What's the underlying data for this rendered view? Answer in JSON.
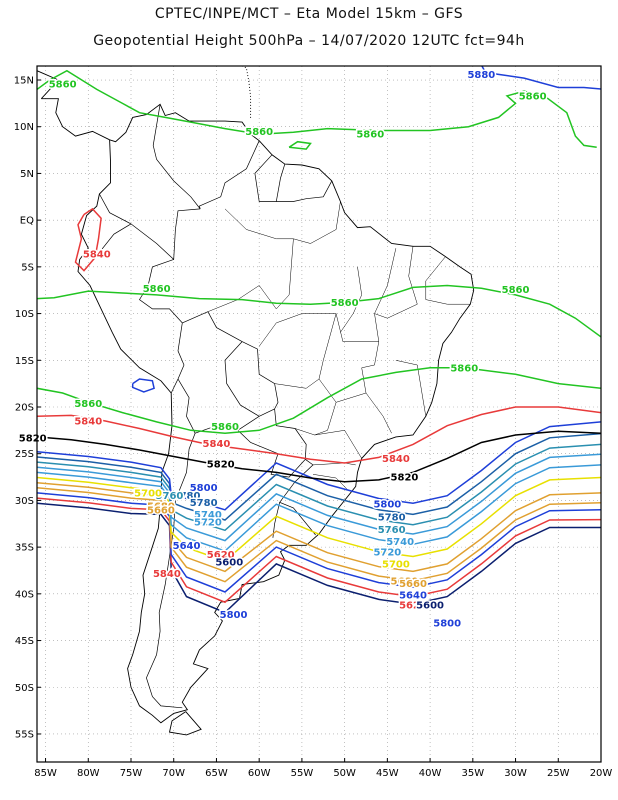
{
  "header": {
    "title_line1": "CPTEC/INPE/MCT –  Eta Model 15km – GFS",
    "title_line2": "Geopotential Height 500hPa – 14/07/2020 12UTC fct=94h"
  },
  "map": {
    "lon_range": [
      -86,
      -20
    ],
    "lat_range": [
      -58,
      16.5
    ],
    "grid": true,
    "lat_ticks": [
      {
        "lat": 15,
        "label": "15N"
      },
      {
        "lat": 10,
        "label": "10N"
      },
      {
        "lat": 5,
        "label": "5N"
      },
      {
        "lat": 0,
        "label": "EQ"
      },
      {
        "lat": -5,
        "label": "5S"
      },
      {
        "lat": -10,
        "label": "10S"
      },
      {
        "lat": -15,
        "label": "15S"
      },
      {
        "lat": -20,
        "label": "20S"
      },
      {
        "lat": -25,
        "label": "25S"
      },
      {
        "lat": -30,
        "label": "30S"
      },
      {
        "lat": -35,
        "label": "35S"
      },
      {
        "lat": -40,
        "label": "40S"
      },
      {
        "lat": -45,
        "label": "45S"
      },
      {
        "lat": -50,
        "label": "50S"
      },
      {
        "lat": -55,
        "label": "55S"
      }
    ],
    "lon_ticks": [
      {
        "lon": -85,
        "label": "85W"
      },
      {
        "lon": -80,
        "label": "80W"
      },
      {
        "lon": -75,
        "label": "75W"
      },
      {
        "lon": -70,
        "label": "70W"
      },
      {
        "lon": -65,
        "label": "65W"
      },
      {
        "lon": -60,
        "label": "60W"
      },
      {
        "lon": -55,
        "label": "55W"
      },
      {
        "lon": -50,
        "label": "50W"
      },
      {
        "lon": -45,
        "label": "45W"
      },
      {
        "lon": -40,
        "label": "40W"
      },
      {
        "lon": -35,
        "label": "35W"
      },
      {
        "lon": -30,
        "label": "30W"
      },
      {
        "lon": -25,
        "label": "25W"
      },
      {
        "lon": -20,
        "label": "20W"
      }
    ]
  },
  "contours": [
    {
      "value": "5880",
      "color": "#1e3fd8",
      "labels": [
        {
          "lon": -34,
          "lat": 15.6
        }
      ]
    },
    {
      "value": "5860",
      "color": "#22c422",
      "labels": [
        {
          "lon": -83,
          "lat": 14.6
        },
        {
          "lon": -60,
          "lat": 9.5
        },
        {
          "lon": -47,
          "lat": 9.2
        },
        {
          "lon": -28,
          "lat": 13.3
        },
        {
          "lon": -72,
          "lat": -7.3
        },
        {
          "lon": -50,
          "lat": -8.8
        },
        {
          "lon": -30,
          "lat": -7.4
        },
        {
          "lon": -36,
          "lat": -15.8
        },
        {
          "lon": -80,
          "lat": -19.6
        },
        {
          "lon": -64,
          "lat": -22.1
        }
      ]
    },
    {
      "value": "5840",
      "color": "#e83a3a",
      "labels": [
        {
          "lon": -80,
          "lat": -21.5
        },
        {
          "lon": -65,
          "lat": -23.9
        },
        {
          "lon": -44,
          "lat": -25.5
        },
        {
          "lon": -79,
          "lat": -3.6
        },
        {
          "lon": -70.8,
          "lat": -37.8
        }
      ]
    },
    {
      "value": "5820",
      "color": "#000000",
      "labels": [
        {
          "lon": -86.5,
          "lat": -23.3
        },
        {
          "lon": -64.5,
          "lat": -26.1
        },
        {
          "lon": -43,
          "lat": -27.5
        }
      ]
    },
    {
      "value": "5800",
      "color": "#1e3fd8",
      "labels": [
        {
          "lon": -66.5,
          "lat": -28.6
        },
        {
          "lon": -45,
          "lat": -30.4
        },
        {
          "lon": -63,
          "lat": -42.2
        },
        {
          "lon": -38,
          "lat": -43.1
        }
      ]
    },
    {
      "value": "5780",
      "color": "#1b5fa6",
      "labels": [
        {
          "lon": -68.5,
          "lat": -29.5
        },
        {
          "lon": -66.5,
          "lat": -30.2
        },
        {
          "lon": -44.5,
          "lat": -31.8
        }
      ]
    },
    {
      "value": "5760",
      "color": "#2a8fb0",
      "labels": [
        {
          "lon": -70.5,
          "lat": -29.5
        },
        {
          "lon": -44.5,
          "lat": -33.1
        }
      ]
    },
    {
      "value": "5740",
      "color": "#3a9ad8",
      "labels": [
        {
          "lon": -66,
          "lat": -31.5
        },
        {
          "lon": -43.5,
          "lat": -34.4
        }
      ]
    },
    {
      "value": "5720",
      "color": "#3a9ad8",
      "labels": [
        {
          "lon": -66,
          "lat": -32.3
        },
        {
          "lon": -45,
          "lat": -35.5
        }
      ]
    },
    {
      "value": "5700",
      "color": "#e8e000",
      "labels": [
        {
          "lon": -73,
          "lat": -29.2
        },
        {
          "lon": -44,
          "lat": -36.8
        }
      ]
    },
    {
      "value": "5680",
      "color": "#e0a030",
      "labels": [
        {
          "lon": -71.5,
          "lat": -30.6
        },
        {
          "lon": -43,
          "lat": -38.6
        }
      ]
    },
    {
      "value": "5660",
      "color": "#e0a030",
      "labels": [
        {
          "lon": -71.5,
          "lat": -31.0
        },
        {
          "lon": -42,
          "lat": -38.9
        }
      ]
    },
    {
      "value": "5640",
      "color": "#1e3fd8",
      "labels": [
        {
          "lon": -68.5,
          "lat": -34.8
        },
        {
          "lon": -42,
          "lat": -40.1
        }
      ]
    },
    {
      "value": "5620",
      "color": "#e83a3a",
      "labels": [
        {
          "lon": -64.5,
          "lat": -35.8
        },
        {
          "lon": -42,
          "lat": -41.2
        }
      ]
    },
    {
      "value": "5600",
      "color": "#0b1f6f",
      "labels": [
        {
          "lon": -63.5,
          "lat": -36.6
        },
        {
          "lon": -40,
          "lat": -41.2
        }
      ]
    }
  ]
}
